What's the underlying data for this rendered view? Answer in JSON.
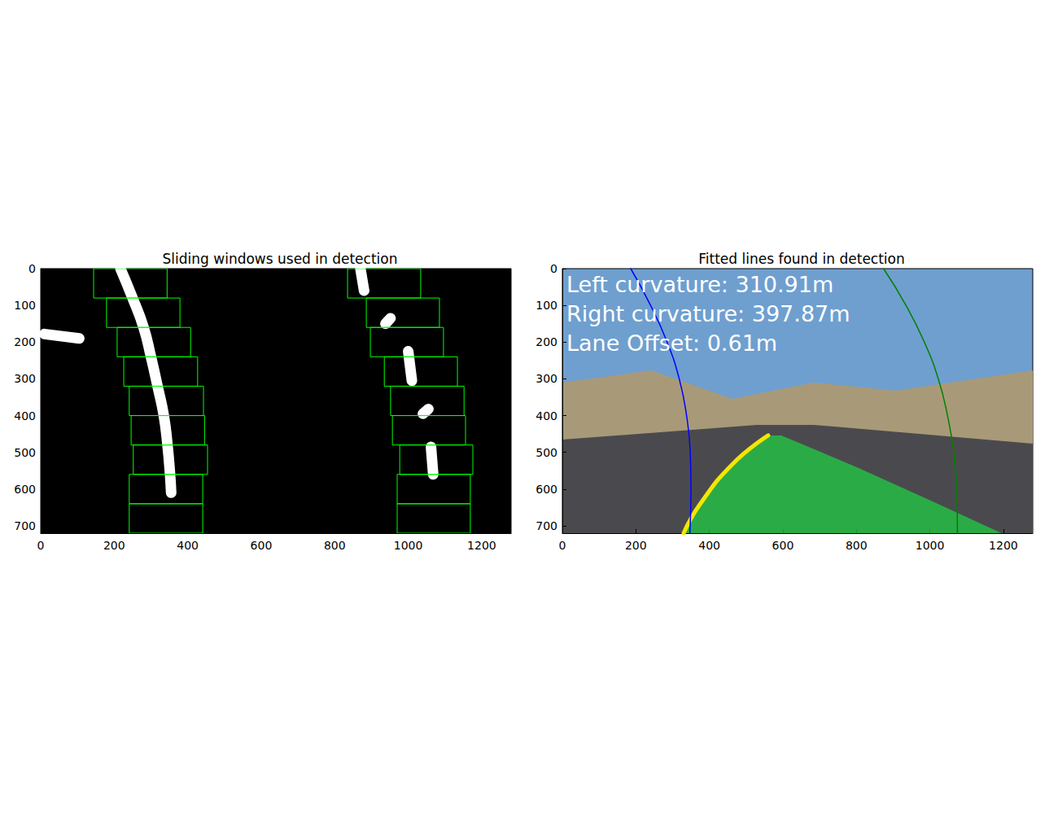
{
  "chart_data": [
    {
      "type": "image",
      "title": "Sliding windows used in detection",
      "xlim": [
        0,
        1280
      ],
      "ylim": [
        720,
        0
      ],
      "xticks": [
        0,
        200,
        400,
        600,
        800,
        1000,
        1200
      ],
      "yticks": [
        0,
        100,
        200,
        300,
        400,
        500,
        600,
        700
      ],
      "windows": {
        "color": "#00ff00",
        "boxes": [
          [
            144,
            0,
            344,
            80
          ],
          [
            179,
            80,
            379,
            160
          ],
          [
            208,
            160,
            408,
            240
          ],
          [
            226,
            240,
            427,
            320
          ],
          [
            241,
            320,
            443,
            400
          ],
          [
            246,
            400,
            446,
            480
          ],
          [
            252,
            480,
            454,
            560
          ],
          [
            241,
            560,
            441,
            640
          ],
          [
            241,
            640,
            441,
            720
          ],
          [
            835,
            0,
            1034,
            80
          ],
          [
            886,
            80,
            1085,
            160
          ],
          [
            897,
            160,
            1096,
            240
          ],
          [
            935,
            240,
            1134,
            320
          ],
          [
            952,
            320,
            1152,
            400
          ],
          [
            957,
            400,
            1156,
            480
          ],
          [
            977,
            480,
            1176,
            560
          ],
          [
            970,
            560,
            1169,
            640
          ],
          [
            970,
            640,
            1169,
            720
          ]
        ]
      },
      "series": [
        {
          "color": "#ffffff",
          "x": [
            217,
            250,
            280,
            300,
            318,
            335,
            345,
            352,
            355
          ],
          "y": [
            0,
            80,
            160,
            240,
            320,
            400,
            480,
            560,
            610
          ]
        },
        {
          "color": "#ffffff",
          "x": [
            870,
            880
          ],
          "y": [
            0,
            60
          ]
        },
        {
          "color": "#ffffff",
          "x": [
            938,
            952
          ],
          "y": [
            150,
            135
          ]
        },
        {
          "color": "#ffffff",
          "x": [
            1000,
            1010
          ],
          "y": [
            225,
            305
          ]
        },
        {
          "color": "#ffffff",
          "x": [
            1040,
            1055
          ],
          "y": [
            395,
            382
          ]
        },
        {
          "color": "#ffffff",
          "x": [
            1062,
            1068
          ],
          "y": [
            485,
            560
          ]
        },
        {
          "color": "#ffffff",
          "x": [
            10,
            105
          ],
          "y": [
            178,
            190
          ]
        }
      ]
    },
    {
      "type": "image",
      "title": "Fitted lines found in detection",
      "xlim": [
        0,
        1280
      ],
      "ylim": [
        720,
        0
      ],
      "xticks": [
        0,
        200,
        400,
        600,
        800,
        1000,
        1200
      ],
      "yticks": [
        0,
        100,
        200,
        300,
        400,
        500,
        600,
        700
      ],
      "annotations": [
        "Left curvature: 310.91m",
        "Right curvature: 397.87m",
        "Lane Offset: 0.61m"
      ],
      "lane_area": {
        "color": "#22cc44",
        "left_x": [
          560,
          463,
          374,
          330
        ],
        "left_y": [
          454,
          532,
          642,
          720
        ],
        "right_x": [
          596,
          800,
          1000,
          1195
        ],
        "right_y": [
          454,
          540,
          630,
          720
        ]
      },
      "series": [
        {
          "color": "#f5e600",
          "x": [
            560,
            463,
            374,
            330
          ],
          "y": [
            454,
            532,
            642,
            720
          ]
        },
        {
          "color": "#0000ff",
          "line_style": "solid",
          "x": [
            186,
            240,
            285,
            318,
            338,
            348,
            350,
            347
          ],
          "y": [
            0,
            100,
            200,
            300,
            400,
            500,
            600,
            720
          ]
        },
        {
          "color": "#008000",
          "line_style": "solid",
          "x": [
            874,
            935,
            985,
            1023,
            1048,
            1065,
            1073,
            1075
          ],
          "y": [
            0,
            100,
            200,
            300,
            400,
            500,
            600,
            720
          ]
        }
      ]
    }
  ]
}
